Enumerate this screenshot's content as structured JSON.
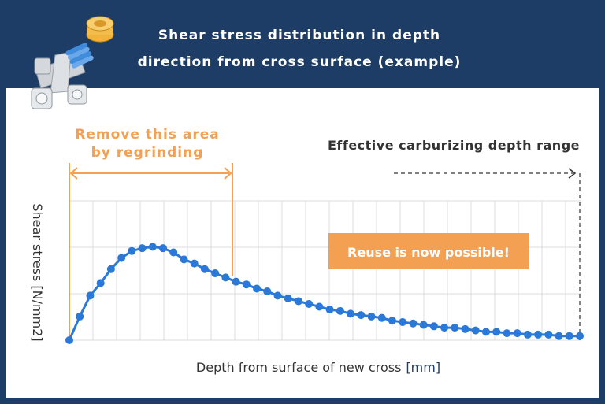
{
  "header": {
    "title_line1": "Shear stress distribution in depth",
    "title_line2": "direction from cross surface (example)",
    "icon": "universal-joint-cross-icon"
  },
  "colors": {
    "header_bg": "#1d3d66",
    "curve": "#2a78d8",
    "annotation_orange": "#f3a052",
    "badge_bg": "#f3a052",
    "grid": "#dcdcdc",
    "text_dark": "#333333",
    "unit_blue": "#1d3d66"
  },
  "annotations": {
    "regrind_line1": "Remove this area",
    "regrind_line2": "by regrinding",
    "effective_range": "Effective carburizing depth range",
    "badge": "Reuse is now possible!"
  },
  "chart_data": {
    "type": "line",
    "title": "Shear stress distribution in depth direction from cross surface (example)",
    "xlabel": "Depth from surface of new cross",
    "xlabel_unit": "[mm]",
    "ylabel": "Shear stress [N/mm2]",
    "x_tick_labels": false,
    "y_tick_labels": false,
    "grid": true,
    "markers": true,
    "series": [
      {
        "values": [
          0,
          0.17,
          0.32,
          0.41,
          0.51,
          0.59,
          0.64,
          0.66,
          0.67,
          0.66,
          0.63,
          0.58,
          0.55,
          0.51,
          0.48,
          0.45,
          0.42,
          0.4,
          0.37,
          0.35,
          0.32,
          0.3,
          0.28,
          0.26,
          0.24,
          0.22,
          0.21,
          0.19,
          0.18,
          0.17,
          0.16,
          0.14,
          0.13,
          0.12,
          0.11,
          0.1,
          0.09,
          0.09,
          0.08,
          0.07,
          0.06,
          0.06,
          0.05,
          0.05,
          0.04,
          0.04,
          0.04,
          0.03,
          0.03,
          0.03
        ]
      }
    ]
  }
}
